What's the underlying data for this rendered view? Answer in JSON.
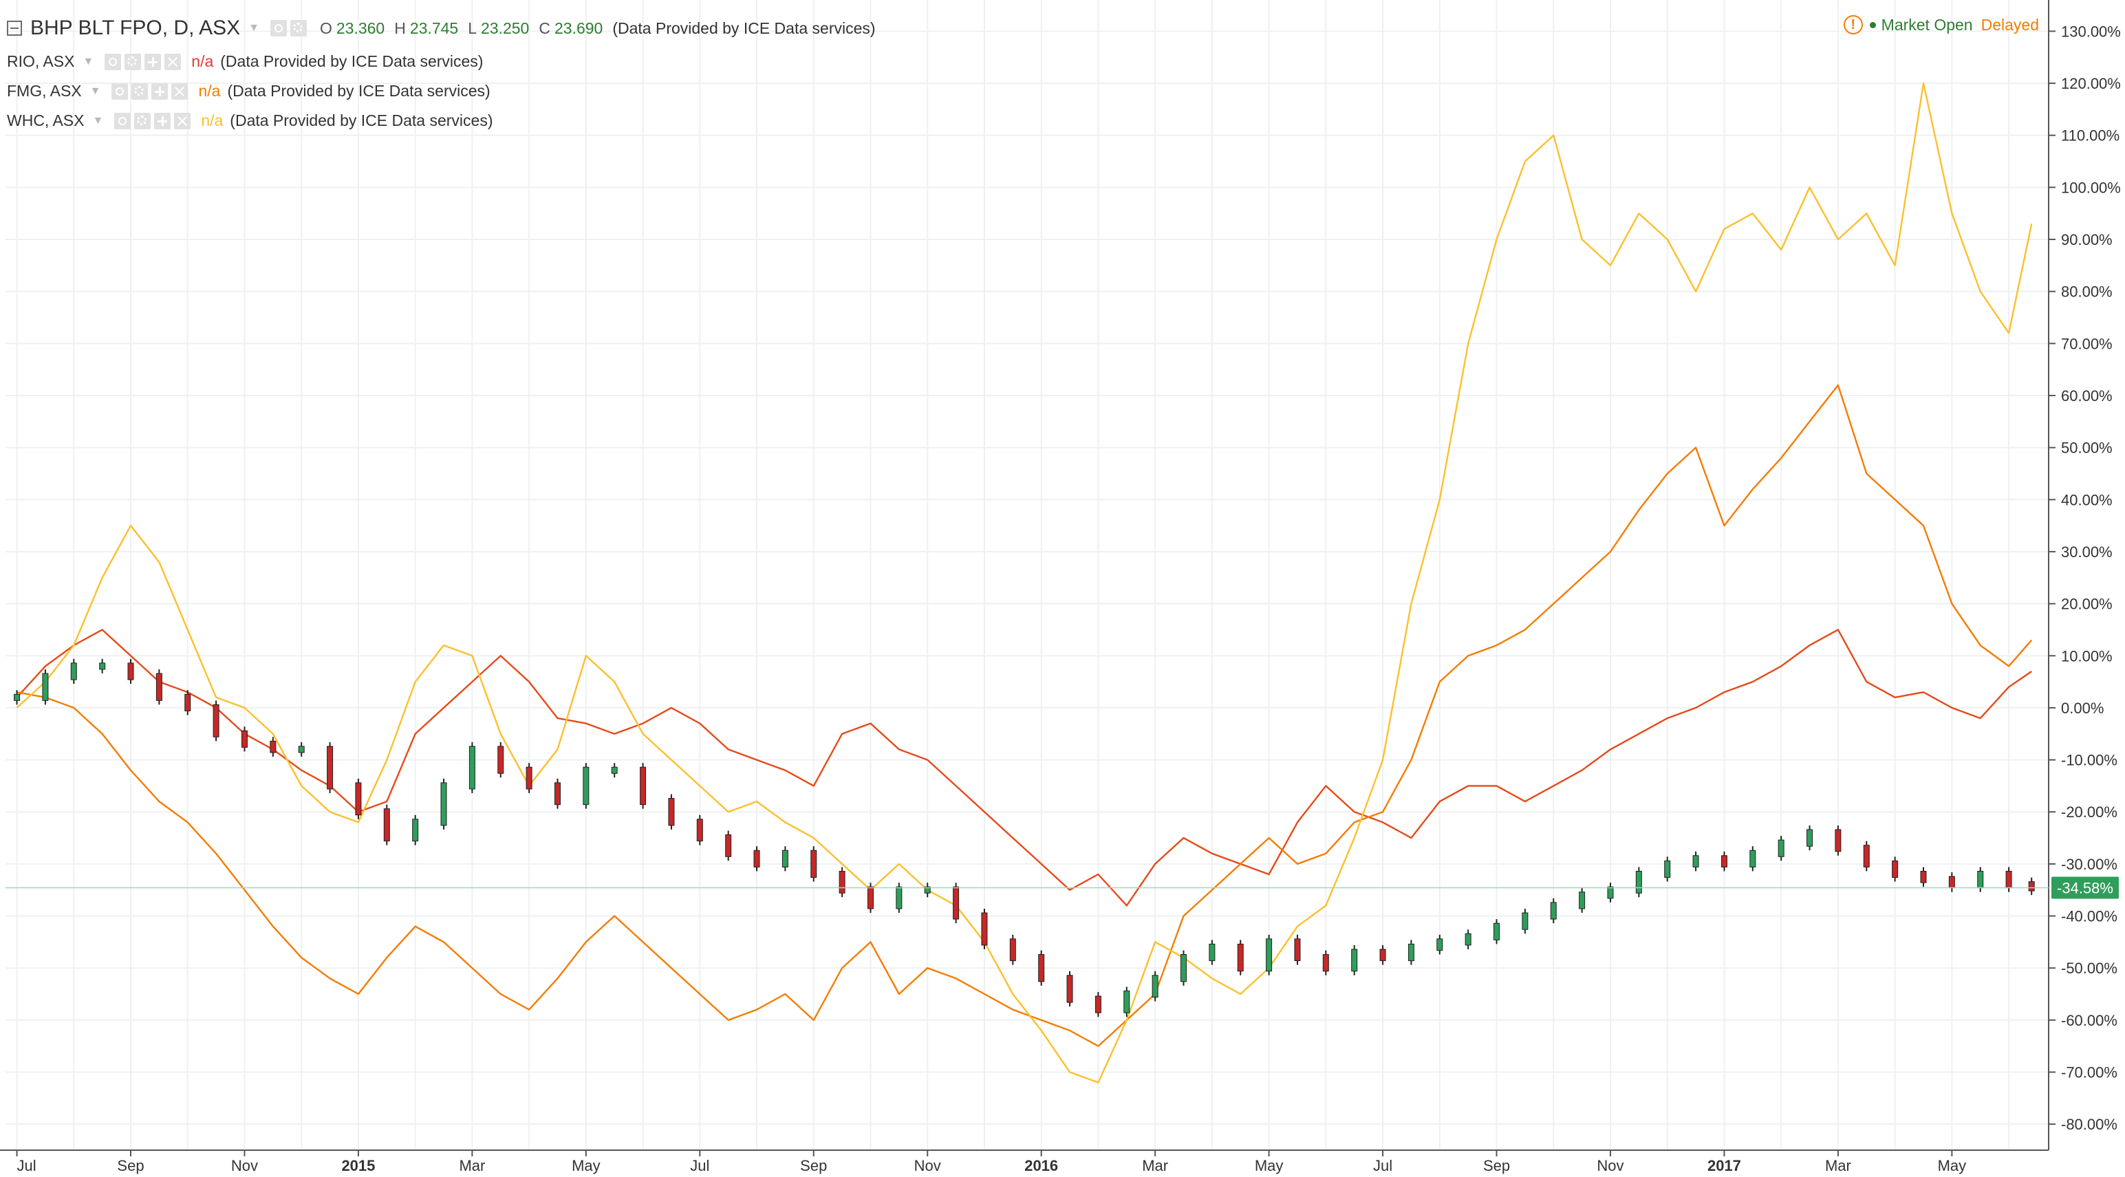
{
  "legend": {
    "main": {
      "symbol": "BHP BLT FPO, D, ASX",
      "o_label": "O",
      "o": "23.360",
      "h_label": "H",
      "h": "23.745",
      "l_label": "L",
      "l": "23.250",
      "c_label": "C",
      "c": "23.690",
      "source": "(Data Provided by ICE Data services)"
    },
    "compare": [
      {
        "symbol": "RIO, ASX",
        "value": "n/a",
        "source": "(Data Provided by ICE Data services)",
        "color": "#e53935"
      },
      {
        "symbol": "FMG, ASX",
        "value": "n/a",
        "source": "(Data Provided by ICE Data services)",
        "color": "#f57c00"
      },
      {
        "symbol": "WHC, ASX",
        "value": "n/a",
        "source": "(Data Provided by ICE Data services)",
        "color": "#fbc02d"
      }
    ]
  },
  "status": {
    "market": "Market Open",
    "delay": "Delayed"
  },
  "icons": {
    "alert": "exclamation-circle-icon",
    "eye": "eye-icon",
    "gear": "gear-icon",
    "plus": "plus-icon",
    "close": "close-icon",
    "collapse": "minus-square-icon"
  },
  "chart_data": {
    "type": "line",
    "y_axis": {
      "side": "right",
      "ticks": [
        "130.00%",
        "120.00%",
        "110.00%",
        "100.00%",
        "90.00%",
        "80.00%",
        "70.00%",
        "60.00%",
        "50.00%",
        "40.00%",
        "30.00%",
        "20.00%",
        "10.00%",
        "0.00%",
        "-10.00%",
        "-20.00%",
        "-30.00%",
        "-40.00%",
        "-50.00%",
        "-60.00%",
        "-70.00%",
        "-80.00%"
      ],
      "ylim": [
        -85,
        136
      ]
    },
    "x_axis": {
      "ticks": [
        {
          "label": "Jul",
          "t": 0,
          "bold": false
        },
        {
          "label": "Sep",
          "t": 2,
          "bold": false
        },
        {
          "label": "Nov",
          "t": 4,
          "bold": false
        },
        {
          "label": "2015",
          "t": 6,
          "bold": true
        },
        {
          "label": "Mar",
          "t": 8,
          "bold": false
        },
        {
          "label": "May",
          "t": 10,
          "bold": false
        },
        {
          "label": "Jul",
          "t": 12,
          "bold": false
        },
        {
          "label": "Sep",
          "t": 14,
          "bold": false
        },
        {
          "label": "Nov",
          "t": 16,
          "bold": false
        },
        {
          "label": "2016",
          "t": 18,
          "bold": true
        },
        {
          "label": "Mar",
          "t": 20,
          "bold": false
        },
        {
          "label": "May",
          "t": 22,
          "bold": false
        },
        {
          "label": "Jul",
          "t": 24,
          "bold": false
        },
        {
          "label": "Sep",
          "t": 26,
          "bold": false
        },
        {
          "label": "Nov",
          "t": 28,
          "bold": false
        },
        {
          "label": "2017",
          "t": 30,
          "bold": true
        },
        {
          "label": "Mar",
          "t": 32,
          "bold": false
        },
        {
          "label": "May",
          "t": 34,
          "bold": false
        }
      ],
      "tlim": [
        -0.2,
        35.7
      ]
    },
    "grid": true,
    "last_value": {
      "label": "-34.58%",
      "value": -34.58,
      "color": "#2e9e5b"
    },
    "series": [
      {
        "name": "RIO, ASX",
        "color": "#e64a19",
        "x": [
          0,
          0.5,
          1,
          1.5,
          2,
          2.5,
          3,
          3.5,
          4,
          4.5,
          5,
          5.5,
          6,
          6.5,
          7,
          7.5,
          8,
          8.5,
          9,
          9.5,
          10,
          10.5,
          11,
          11.5,
          12,
          12.5,
          13,
          13.5,
          14,
          14.5,
          15,
          15.5,
          16,
          16.5,
          17,
          17.5,
          18,
          18.5,
          19,
          19.5,
          20,
          20.5,
          21,
          21.5,
          22,
          22.5,
          23,
          23.5,
          24,
          24.5,
          25,
          25.5,
          26,
          26.5,
          27,
          27.5,
          28,
          28.5,
          29,
          29.5,
          30,
          30.5,
          31,
          31.5,
          32,
          32.5,
          33,
          33.5,
          34,
          34.5,
          35,
          35.4
        ],
        "y": [
          2,
          8,
          12,
          15,
          10,
          5,
          3,
          0,
          -5,
          -8,
          -12,
          -15,
          -20,
          -18,
          -5,
          0,
          5,
          10,
          5,
          -2,
          -3,
          -5,
          -3,
          0,
          -3,
          -8,
          -10,
          -12,
          -15,
          -5,
          -3,
          -8,
          -10,
          -15,
          -20,
          -25,
          -30,
          -35,
          -32,
          -38,
          -30,
          -25,
          -28,
          -30,
          -32,
          -22,
          -15,
          -20,
          -22,
          -25,
          -18,
          -15,
          -15,
          -18,
          -15,
          -12,
          -8,
          -5,
          -2,
          0,
          3,
          5,
          8,
          12,
          15,
          5,
          2,
          3,
          0,
          -2,
          4,
          7
        ]
      },
      {
        "name": "FMG, ASX",
        "color": "#f57c00",
        "x": [
          0,
          0.5,
          1,
          1.5,
          2,
          2.5,
          3,
          3.5,
          4,
          4.5,
          5,
          5.5,
          6,
          6.5,
          7,
          7.5,
          8,
          8.5,
          9,
          9.5,
          10,
          10.5,
          11,
          11.5,
          12,
          12.5,
          13,
          13.5,
          14,
          14.5,
          15,
          15.5,
          16,
          16.5,
          17,
          17.5,
          18,
          18.5,
          19,
          19.5,
          20,
          20.5,
          21,
          21.5,
          22,
          22.5,
          23,
          23.5,
          24,
          24.5,
          25,
          25.5,
          26,
          26.5,
          27,
          27.5,
          28,
          28.5,
          29,
          29.5,
          30,
          30.5,
          31,
          31.5,
          32,
          32.5,
          33,
          33.5,
          34,
          34.5,
          35,
          35.4
        ],
        "y": [
          3,
          2,
          0,
          -5,
          -12,
          -18,
          -22,
          -28,
          -35,
          -42,
          -48,
          -52,
          -55,
          -48,
          -42,
          -45,
          -50,
          -55,
          -58,
          -52,
          -45,
          -40,
          -45,
          -50,
          -55,
          -60,
          -58,
          -55,
          -60,
          -50,
          -45,
          -55,
          -50,
          -52,
          -55,
          -58,
          -60,
          -62,
          -65,
          -60,
          -55,
          -40,
          -35,
          -30,
          -25,
          -30,
          -28,
          -22,
          -20,
          -10,
          5,
          10,
          12,
          15,
          20,
          25,
          30,
          38,
          45,
          50,
          35,
          42,
          48,
          55,
          62,
          45,
          40,
          35,
          20,
          12,
          8,
          13
        ]
      },
      {
        "name": "WHC, ASX",
        "color": "#fbc02d",
        "x": [
          0,
          0.5,
          1,
          1.5,
          2,
          2.5,
          3,
          3.5,
          4,
          4.5,
          5,
          5.5,
          6,
          6.5,
          7,
          7.5,
          8,
          8.5,
          9,
          9.5,
          10,
          10.5,
          11,
          11.5,
          12,
          12.5,
          13,
          13.5,
          14,
          14.5,
          15,
          15.5,
          16,
          16.5,
          17,
          17.5,
          18,
          18.5,
          19,
          19.5,
          20,
          20.5,
          21,
          21.5,
          22,
          22.5,
          23,
          23.5,
          24,
          24.5,
          25,
          25.5,
          26,
          26.5,
          27,
          27.5,
          28,
          28.5,
          29,
          29.5,
          30,
          30.5,
          31,
          31.5,
          32,
          32.5,
          33,
          33.5,
          34,
          34.5,
          35,
          35.4
        ],
        "y": [
          0,
          5,
          12,
          25,
          35,
          28,
          15,
          2,
          0,
          -5,
          -15,
          -20,
          -22,
          -10,
          5,
          12,
          10,
          -5,
          -15,
          -8,
          10,
          5,
          -5,
          -10,
          -15,
          -20,
          -18,
          -22,
          -25,
          -30,
          -35,
          -30,
          -35,
          -38,
          -45,
          -55,
          -62,
          -70,
          -72,
          -60,
          -45,
          -48,
          -52,
          -55,
          -50,
          -42,
          -38,
          -25,
          -10,
          20,
          40,
          70,
          90,
          105,
          110,
          90,
          85,
          95,
          90,
          80,
          92,
          95,
          88,
          100,
          90,
          95,
          85,
          120,
          95,
          80,
          72,
          93
        ]
      }
    ],
    "candles": {
      "name": "BHP BLT FPO, D, ASX",
      "up_color": "#2e9e5b",
      "down_color": "#c62828",
      "t": [
        0,
        0.5,
        1,
        1.5,
        2,
        2.5,
        3,
        3.5,
        4,
        4.5,
        5,
        5.5,
        6,
        6.5,
        7,
        7.5,
        8,
        8.5,
        9,
        9.5,
        10,
        10.5,
        11,
        11.5,
        12,
        12.5,
        13,
        13.5,
        14,
        14.5,
        15,
        15.5,
        16,
        16.5,
        17,
        17.5,
        18,
        18.5,
        19,
        19.5,
        20,
        20.5,
        21,
        21.5,
        22,
        22.5,
        23,
        23.5,
        24,
        24.5,
        25,
        25.5,
        26,
        26.5,
        27,
        27.5,
        28,
        28.5,
        29,
        29.5,
        30,
        30.5,
        31,
        31.5,
        32,
        32.5,
        33,
        33.5,
        34,
        34.5,
        35,
        35.4
      ],
      "y": [
        2,
        6,
        8,
        8,
        6,
        2,
        0,
        -5,
        -7,
        -8,
        -8,
        -15,
        -20,
        -25,
        -22,
        -15,
        -8,
        -12,
        -15,
        -18,
        -12,
        -12,
        -18,
        -22,
        -25,
        -28,
        -30,
        -28,
        -32,
        -35,
        -38,
        -35,
        -35,
        -40,
        -45,
        -48,
        -52,
        -56,
        -58,
        -55,
        -52,
        -48,
        -46,
        -50,
        -45,
        -48,
        -50,
        -47,
        -48,
        -46,
        -45,
        -44,
        -42,
        -40,
        -38,
        -36,
        -35,
        -32,
        -30,
        -29,
        -30,
        -28,
        -26,
        -24,
        -27,
        -30,
        -32,
        -33,
        -34,
        -32,
        -34,
        -34.58
      ]
    }
  }
}
